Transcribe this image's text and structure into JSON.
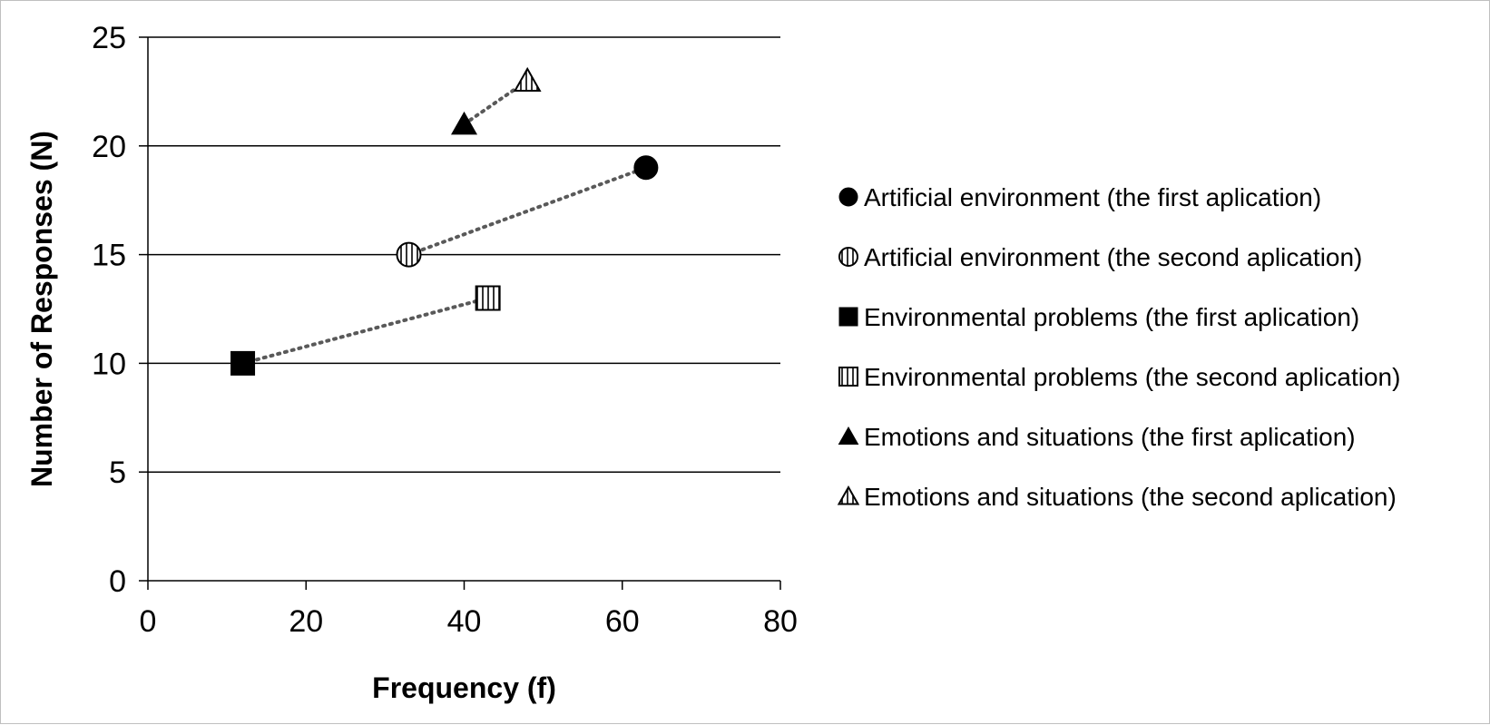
{
  "chart_data": {
    "type": "scatter",
    "xlabel": "Frequency (f)",
    "ylabel": "Number of Responses (N)",
    "xlim": [
      0,
      80
    ],
    "ylim": [
      0,
      25
    ],
    "x_ticks": [
      0,
      20,
      40,
      60,
      80
    ],
    "y_ticks": [
      0,
      5,
      10,
      15,
      20,
      25
    ],
    "grid": "horizontal",
    "legend_position": "right",
    "series": [
      {
        "name": "Artificial environment (the first aplication)",
        "marker": "circle",
        "fill": "solid",
        "x": 63,
        "y": 19
      },
      {
        "name": "Artificial environment (the second aplication)",
        "marker": "circle",
        "fill": "vertical-lines",
        "x": 33,
        "y": 15
      },
      {
        "name": "Environmental problems (the first aplication)",
        "marker": "square",
        "fill": "solid",
        "x": 12,
        "y": 10
      },
      {
        "name": "Environmental problems (the second aplication)",
        "marker": "square",
        "fill": "vertical-lines",
        "x": 43,
        "y": 13
      },
      {
        "name": "Emotions and situations (the first aplication)",
        "marker": "triangle",
        "fill": "solid",
        "x": 40,
        "y": 21
      },
      {
        "name": "Emotions and situations (the second aplication)",
        "marker": "triangle",
        "fill": "vertical-lines",
        "x": 48,
        "y": 23
      }
    ],
    "connectors": [
      {
        "from": 4,
        "to": 5
      },
      {
        "from": 1,
        "to": 0
      },
      {
        "from": 2,
        "to": 3
      }
    ],
    "colors": {
      "marker": "#000000",
      "connector": "#595959",
      "grid": "#000000"
    }
  }
}
